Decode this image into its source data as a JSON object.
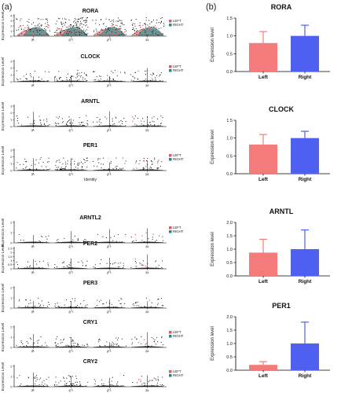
{
  "panel_labels": [
    "(a)",
    "(b)"
  ],
  "colors": {
    "left": "#f47b7b",
    "right": "#4f5ff0",
    "left_dots": "#e05a5a",
    "right_violin": "#1f8a8a",
    "points": "#000000"
  },
  "violin_legend": [
    "LEFT",
    "RIGHT"
  ],
  "violin_identity_label": "Identity",
  "violin_ylabel": "Expression Level",
  "bar_ylabel": "Expression level",
  "chart_data": [
    {
      "type": "scatter",
      "kind": "violin",
      "title": "RORA",
      "categories": [
        "iR",
        "iF1",
        "iF2",
        "iG"
      ],
      "ylim": [
        0,
        4
      ],
      "yticks": [
        0,
        1,
        2,
        3,
        4
      ],
      "legend": true,
      "identity_label": false,
      "intensity": 0.95,
      "violin": "full"
    },
    {
      "type": "scatter",
      "kind": "violin",
      "title": "CLOCK",
      "categories": [
        "iR",
        "iF1",
        "iF2",
        "iG"
      ],
      "ylim": [
        0,
        3
      ],
      "yticks": [
        0,
        1,
        2,
        3
      ],
      "legend": true,
      "identity_label": false,
      "intensity": 0.35,
      "violin": "thin"
    },
    {
      "type": "scatter",
      "kind": "violin",
      "title": "ARNTL",
      "categories": [
        "iR",
        "iF1",
        "iF2",
        "iG"
      ],
      "ylim": [
        0,
        3
      ],
      "yticks": [
        0,
        1,
        2,
        3
      ],
      "legend": false,
      "identity_label": false,
      "intensity": 0.3,
      "violin": "thin"
    },
    {
      "type": "scatter",
      "kind": "violin",
      "title": "PER1",
      "categories": [
        "iR",
        "iF1",
        "iF2",
        "iG"
      ],
      "ylim": [
        0,
        3
      ],
      "yticks": [
        0,
        1,
        2,
        3
      ],
      "legend": true,
      "identity_label": true,
      "intensity": 0.45,
      "violin": "thin"
    },
    {
      "type": "scatter",
      "kind": "violin",
      "title": "ARNTL2",
      "categories": [
        "iR",
        "iF1",
        "iF2",
        "iG"
      ],
      "ylim": [
        0,
        2
      ],
      "yticks": [
        0,
        1,
        2
      ],
      "legend": true,
      "identity_label": false,
      "intensity": 0.05,
      "violin": "thin"
    },
    {
      "type": "scatter",
      "kind": "violin",
      "title": "PER2",
      "categories": [
        "iR",
        "iF1",
        "iF2",
        "iG"
      ],
      "ylim": [
        0,
        2.5
      ],
      "yticks": [
        0,
        0.5,
        1,
        1.5,
        2,
        2.5
      ],
      "legend": false,
      "identity_label": false,
      "intensity": 0.12,
      "violin": "thin"
    },
    {
      "type": "scatter",
      "kind": "violin",
      "title": "PER3",
      "categories": [
        "iR",
        "iF1",
        "iF2",
        "iG"
      ],
      "ylim": [
        0,
        2
      ],
      "yticks": [
        0,
        1,
        2
      ],
      "legend": false,
      "identity_label": false,
      "intensity": 0.2,
      "violin": "thin"
    },
    {
      "type": "scatter",
      "kind": "violin",
      "title": "CRY1",
      "categories": [
        "iR",
        "iF1",
        "iF2",
        "iG"
      ],
      "ylim": [
        0,
        2
      ],
      "yticks": [
        0,
        1,
        2
      ],
      "legend": true,
      "identity_label": false,
      "intensity": 0.25,
      "violin": "thin"
    },
    {
      "type": "scatter",
      "kind": "violin",
      "title": "CRY2",
      "categories": [
        "iR",
        "iF1",
        "iF2",
        "iG"
      ],
      "ylim": [
        0,
        2
      ],
      "yticks": [
        0,
        1,
        2
      ],
      "legend": true,
      "identity_label": true,
      "intensity": 0.3,
      "violin": "thin"
    },
    {
      "type": "bar",
      "title": "RORA",
      "categories": [
        "Left",
        "Right"
      ],
      "values": [
        0.8,
        1.0
      ],
      "errors": [
        0.32,
        0.3
      ],
      "ylim": [
        0,
        1.5
      ],
      "yticks": [
        0,
        0.5,
        1.0,
        1.5
      ],
      "ylabel": "Expression level"
    },
    {
      "type": "bar",
      "title": "CLOCK",
      "categories": [
        "Left",
        "Right"
      ],
      "values": [
        0.82,
        1.0
      ],
      "errors": [
        0.28,
        0.19
      ],
      "ylim": [
        0,
        1.5
      ],
      "yticks": [
        0,
        0.5,
        1.0,
        1.5
      ],
      "ylabel": "Expression level"
    },
    {
      "type": "bar",
      "title": "ARNTL",
      "categories": [
        "Left",
        "Right"
      ],
      "values": [
        0.87,
        1.0
      ],
      "errors": [
        0.5,
        0.72
      ],
      "ylim": [
        0,
        2.0
      ],
      "yticks": [
        0,
        0.5,
        1.0,
        1.5,
        2.0
      ],
      "ylabel": "Expression level"
    },
    {
      "type": "bar",
      "title": "PER1",
      "categories": [
        "Left",
        "Right"
      ],
      "values": [
        0.2,
        1.0
      ],
      "errors": [
        0.12,
        0.8
      ],
      "ylim": [
        0,
        2.0
      ],
      "yticks": [
        0,
        0.5,
        1.0,
        1.5,
        2.0
      ],
      "ylabel": "Expression level"
    }
  ]
}
